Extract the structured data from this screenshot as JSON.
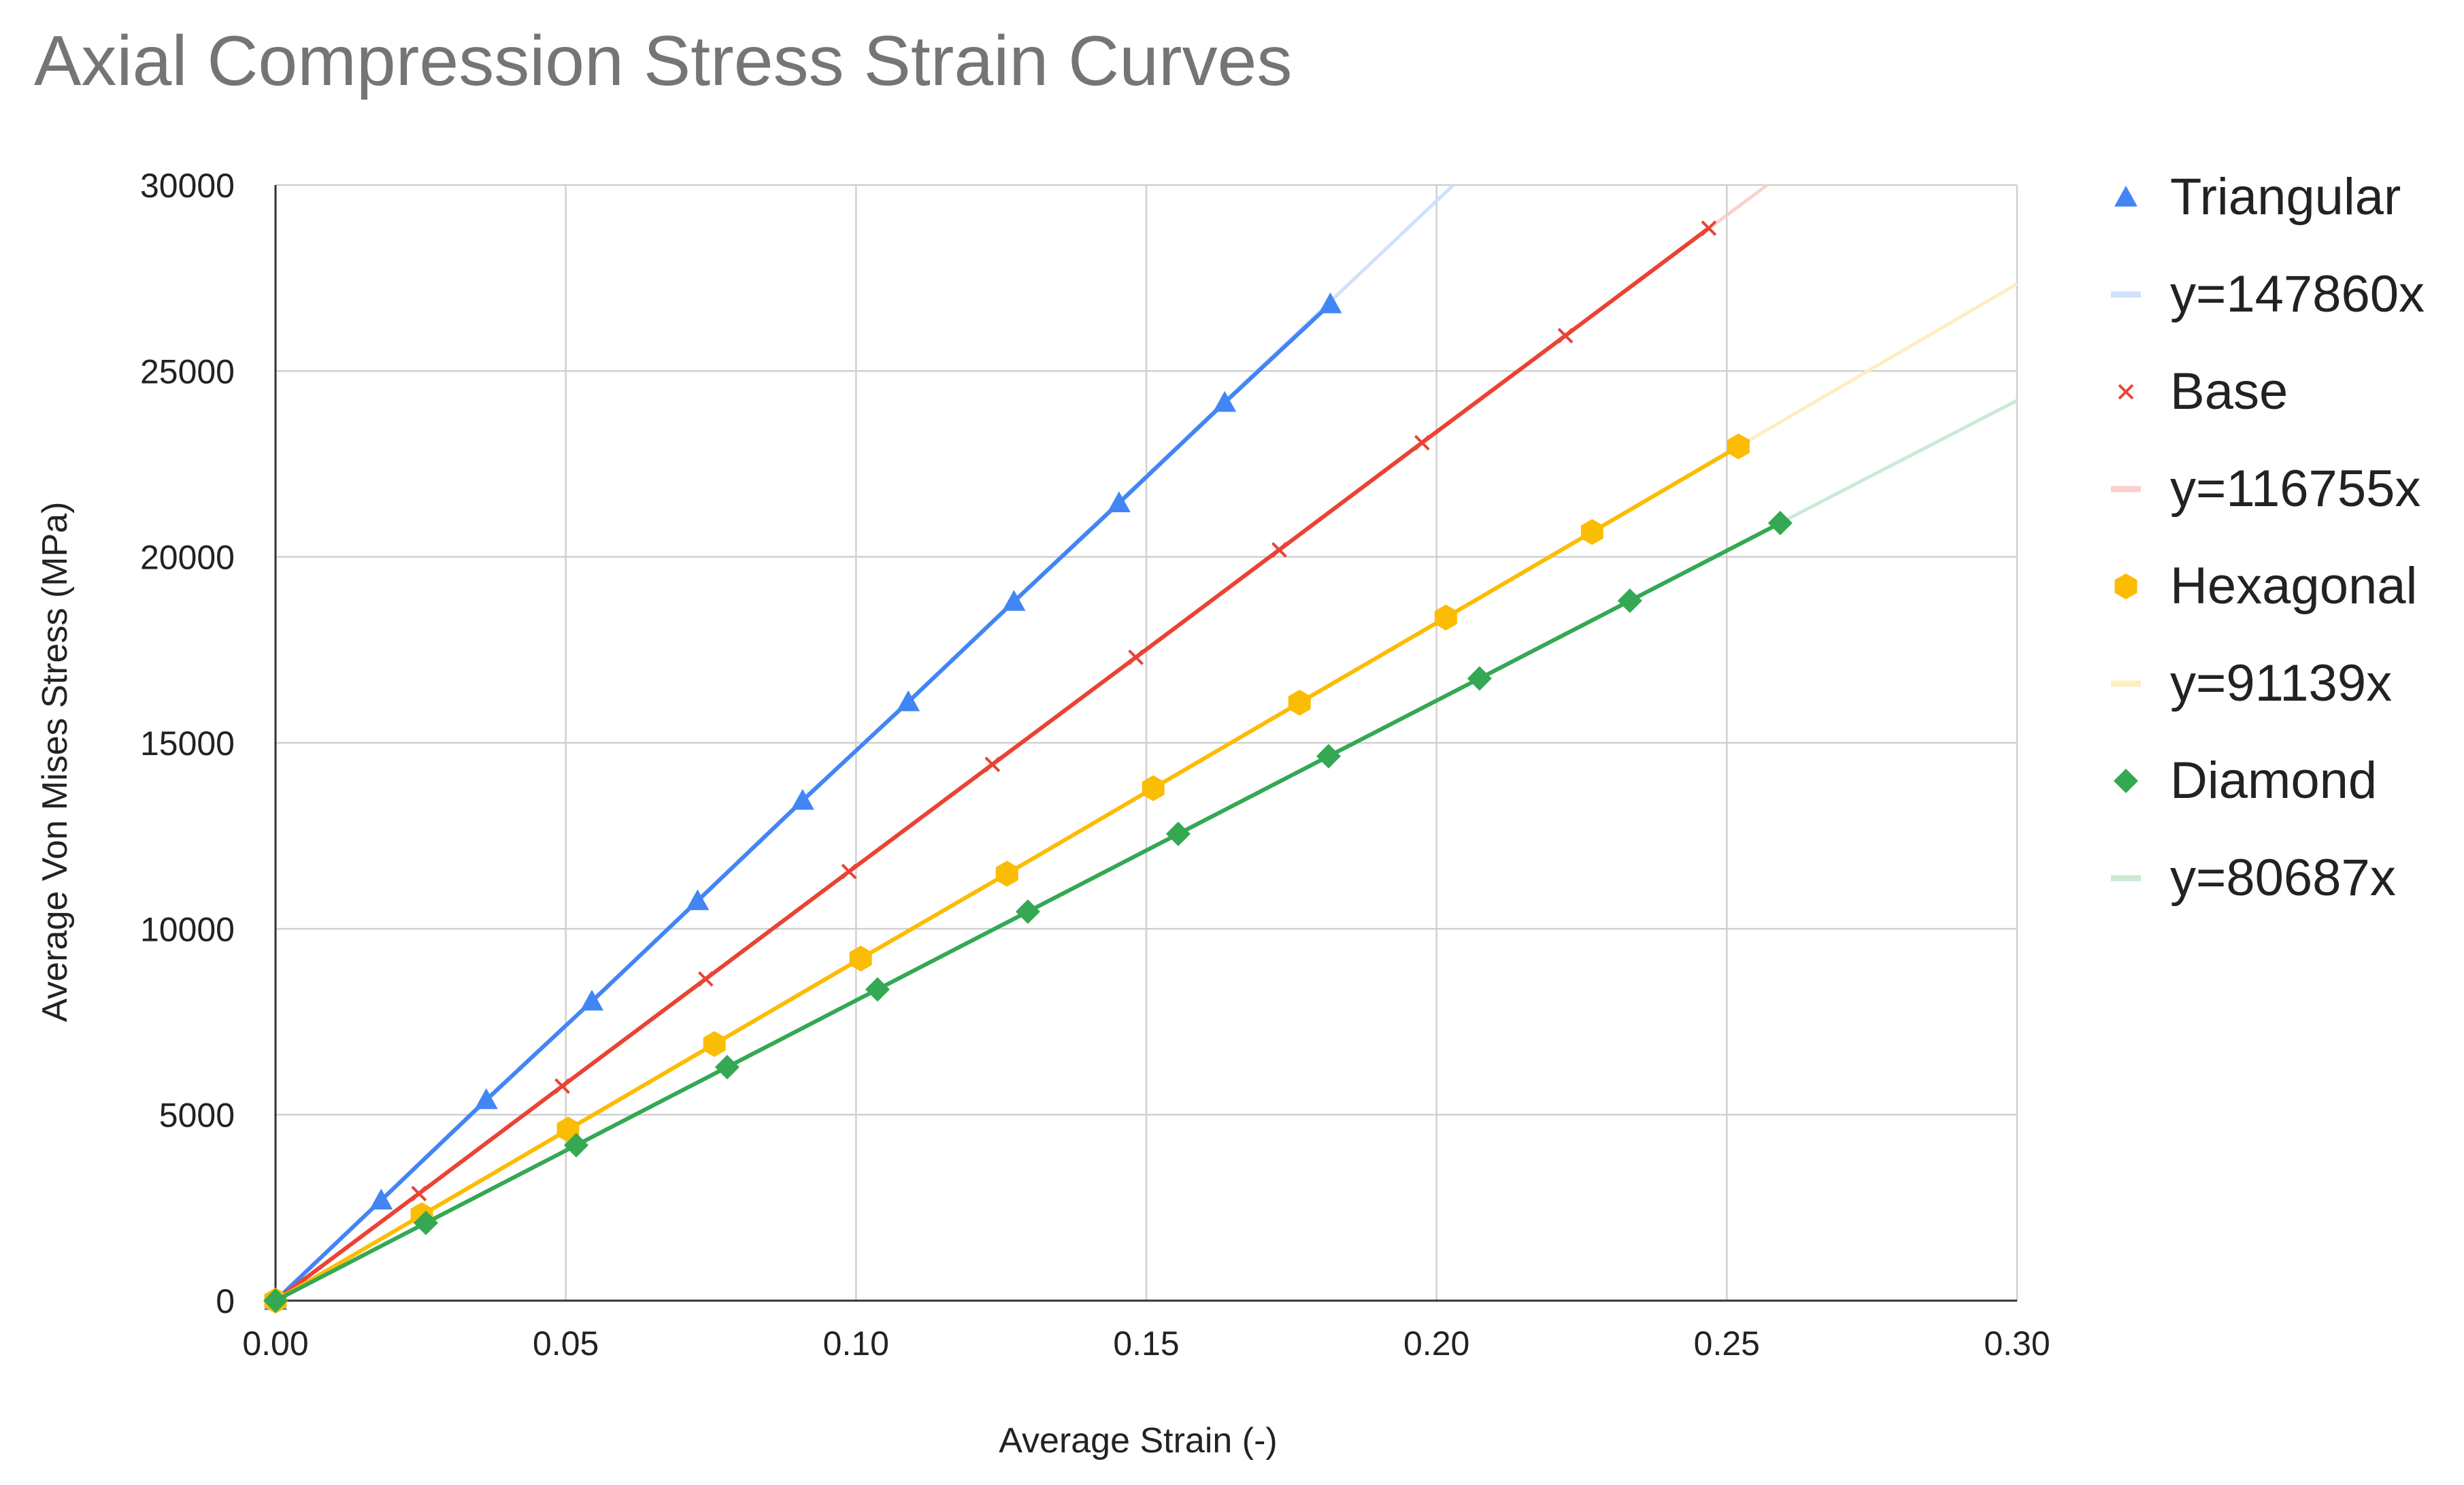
{
  "chart_data": {
    "type": "scatter",
    "title": "Axial Compression Stress Strain Curves",
    "xlabel": "Average Strain (-)",
    "ylabel": "Average Von Mises Stress (MPa)",
    "xlim": [
      0,
      0.3
    ],
    "ylim": [
      0,
      30000
    ],
    "grid": true,
    "legend_position": "right",
    "x_ticks": [
      0,
      0.05,
      0.1,
      0.15,
      0.2,
      0.25,
      0.3
    ],
    "x_tick_labels": [
      "0.00",
      "0.05",
      "0.10",
      "0.15",
      "0.20",
      "0.25",
      "0.30"
    ],
    "y_ticks": [
      0,
      5000,
      10000,
      15000,
      20000,
      25000,
      30000
    ],
    "y_tick_labels": [
      "0",
      "5000",
      "10000",
      "15000",
      "20000",
      "25000",
      "30000"
    ],
    "series": [
      {
        "name": "Triangular",
        "color": "#4285f4",
        "marker": "triangle",
        "trendline_label": "y=147860x",
        "slope": 147860,
        "x": [
          0,
          0.0182,
          0.0363,
          0.0545,
          0.0727,
          0.0908,
          0.109,
          0.1272,
          0.1453,
          0.1635,
          0.1817
        ],
        "y": [
          0,
          2700,
          5400,
          8050,
          10750,
          13450,
          16100,
          18800,
          21450,
          24150,
          26800
        ]
      },
      {
        "name": "Base",
        "color": "#ea4335",
        "marker": "x",
        "trendline_label": "y=116755x",
        "slope": 116755,
        "x": [
          0,
          0.0247,
          0.0494,
          0.0741,
          0.0988,
          0.1235,
          0.1482,
          0.1729,
          0.1975,
          0.2222,
          0.2469
        ],
        "y": [
          0,
          2880,
          5770,
          8650,
          11540,
          14420,
          17300,
          20190,
          23070,
          25950,
          28840
        ]
      },
      {
        "name": "Hexagonal",
        "color": "#fbbc04",
        "marker": "hexagon",
        "trendline_label": "y=91139x",
        "slope": 91139,
        "x": [
          0,
          0.0252,
          0.0504,
          0.0756,
          0.1008,
          0.126,
          0.1512,
          0.1764,
          0.2016,
          0.2268,
          0.252
        ],
        "y": [
          0,
          2300,
          4600,
          6900,
          9200,
          11480,
          13780,
          16080,
          18370,
          20670,
          22970
        ]
      },
      {
        "name": "Diamond",
        "color": "#34a853",
        "marker": "diamond",
        "trendline_label": "y=80687x",
        "slope": 80687,
        "x": [
          0,
          0.0259,
          0.0518,
          0.0778,
          0.1037,
          0.1296,
          0.1555,
          0.1814,
          0.2074,
          0.2333,
          0.2592
        ],
        "y": [
          0,
          2090,
          4180,
          6280,
          8370,
          10460,
          12550,
          14640,
          16730,
          18820,
          20910
        ]
      }
    ]
  }
}
